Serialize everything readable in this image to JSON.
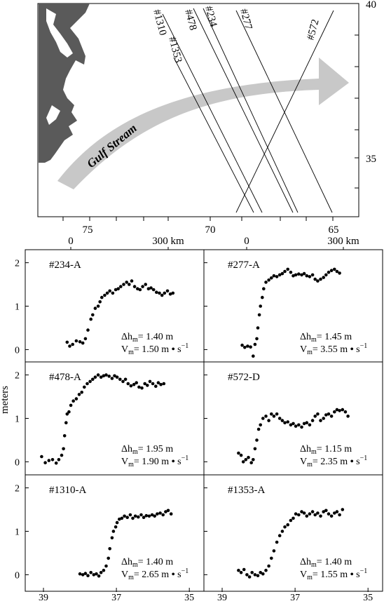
{
  "map": {
    "lat_ticks": [
      "40",
      "35"
    ],
    "lon_ticks": [
      "75",
      "70",
      "65"
    ],
    "scale_bars": [
      {
        "start": "0",
        "end": "300 km"
      },
      {
        "start": "0",
        "end": "300 km"
      }
    ],
    "current_label": "Gulf Stream",
    "tracks": [
      {
        "label": "#1310",
        "label2": "#1353"
      },
      {
        "label": "#478"
      },
      {
        "label": "#234"
      },
      {
        "label": "#277"
      },
      {
        "label": "#572"
      }
    ],
    "colors": {
      "land": "#5a5a5a",
      "arrow": "#c8c8c8"
    }
  },
  "panels_ylabel": "meters",
  "chart_data": [
    {
      "type": "scatter",
      "title": "#234-A",
      "ylim": [
        -0.3,
        2.3
      ],
      "xlim": [
        39.5,
        34.6
      ],
      "yticks": [
        "0",
        "1",
        "2"
      ],
      "xticks": [],
      "annotation": {
        "dh": "Δh",
        "dh_sub": "m",
        "dh_val": "= 1.40 m",
        "v": "V",
        "v_sub": "m",
        "v_val": "= 1.50 m",
        "v_unit": "s",
        "v_exp": "−1"
      },
      "points": [
        [
          38.35,
          0.17
        ],
        [
          38.28,
          0.08
        ],
        [
          38.2,
          0.12
        ],
        [
          38.1,
          0.2
        ],
        [
          38.0,
          0.18
        ],
        [
          37.92,
          0.15
        ],
        [
          37.85,
          0.25
        ],
        [
          37.78,
          0.45
        ],
        [
          37.7,
          0.7
        ],
        [
          37.65,
          0.8
        ],
        [
          37.58,
          0.95
        ],
        [
          37.5,
          1.0
        ],
        [
          37.45,
          1.1
        ],
        [
          37.4,
          1.2
        ],
        [
          37.32,
          1.25
        ],
        [
          37.25,
          1.3
        ],
        [
          37.18,
          1.35
        ],
        [
          37.1,
          1.3
        ],
        [
          37.02,
          1.38
        ],
        [
          36.95,
          1.4
        ],
        [
          36.88,
          1.45
        ],
        [
          36.8,
          1.5
        ],
        [
          36.72,
          1.55
        ],
        [
          36.65,
          1.5
        ],
        [
          36.58,
          1.58
        ],
        [
          36.5,
          1.45
        ],
        [
          36.42,
          1.4
        ],
        [
          36.35,
          1.38
        ],
        [
          36.28,
          1.45
        ],
        [
          36.2,
          1.5
        ],
        [
          36.12,
          1.4
        ],
        [
          36.05,
          1.42
        ],
        [
          35.98,
          1.38
        ],
        [
          35.9,
          1.32
        ],
        [
          35.82,
          1.3
        ],
        [
          35.75,
          1.25
        ],
        [
          35.68,
          1.3
        ],
        [
          35.6,
          1.35
        ],
        [
          35.52,
          1.28
        ],
        [
          35.45,
          1.3
        ]
      ]
    },
    {
      "type": "scatter",
      "title": "#277-A",
      "ylim": [
        -0.3,
        2.3
      ],
      "xlim": [
        39.5,
        34.6
      ],
      "yticks": [],
      "xticks": [],
      "annotation": {
        "dh": "Δh",
        "dh_sub": "m",
        "dh_val": "= 1.45 m",
        "v": "V",
        "v_sub": "m",
        "v_val": "= 3.55 m",
        "v_unit": "s",
        "v_exp": "−1"
      },
      "points": [
        [
          38.45,
          0.1
        ],
        [
          38.38,
          0.05
        ],
        [
          38.3,
          0.08
        ],
        [
          38.22,
          0.06
        ],
        [
          38.15,
          -0.15
        ],
        [
          38.1,
          0.12
        ],
        [
          38.05,
          0.25
        ],
        [
          38.02,
          0.5
        ],
        [
          37.98,
          0.8
        ],
        [
          37.95,
          1.0
        ],
        [
          37.9,
          1.2
        ],
        [
          37.86,
          1.4
        ],
        [
          37.8,
          1.55
        ],
        [
          37.72,
          1.6
        ],
        [
          37.65,
          1.65
        ],
        [
          37.58,
          1.7
        ],
        [
          37.5,
          1.68
        ],
        [
          37.42,
          1.72
        ],
        [
          37.35,
          1.75
        ],
        [
          37.28,
          1.8
        ],
        [
          37.2,
          1.85
        ],
        [
          37.12,
          1.78
        ],
        [
          37.05,
          1.7
        ],
        [
          36.98,
          1.72
        ],
        [
          36.9,
          1.74
        ],
        [
          36.82,
          1.72
        ],
        [
          36.75,
          1.75
        ],
        [
          36.68,
          1.7
        ],
        [
          36.6,
          1.68
        ],
        [
          36.52,
          1.72
        ],
        [
          36.45,
          1.62
        ],
        [
          36.38,
          1.58
        ],
        [
          36.3,
          1.62
        ],
        [
          36.22,
          1.66
        ],
        [
          36.15,
          1.72
        ],
        [
          36.08,
          1.78
        ],
        [
          36.0,
          1.82
        ],
        [
          35.92,
          1.85
        ],
        [
          35.85,
          1.8
        ],
        [
          35.78,
          1.76
        ]
      ]
    },
    {
      "type": "scatter",
      "title": "#478-A",
      "ylim": [
        -0.3,
        2.3
      ],
      "xlim": [
        39.5,
        34.6
      ],
      "yticks": [
        "0",
        "1",
        "2"
      ],
      "xticks": [],
      "annotation": {
        "dh": "Δh",
        "dh_sub": "m",
        "dh_val": "= 1.95 m",
        "v": "V",
        "v_sub": "m",
        "v_val": "= 1.90 m",
        "v_unit": "s",
        "v_exp": "−1"
      },
      "points": [
        [
          39.05,
          0.12
        ],
        [
          38.95,
          -0.02
        ],
        [
          38.85,
          0.03
        ],
        [
          38.75,
          0.05
        ],
        [
          38.65,
          -0.03
        ],
        [
          38.58,
          0.05
        ],
        [
          38.5,
          0.15
        ],
        [
          38.45,
          0.3
        ],
        [
          38.42,
          0.6
        ],
        [
          38.38,
          0.9
        ],
        [
          38.35,
          1.1
        ],
        [
          38.3,
          1.15
        ],
        [
          38.25,
          1.3
        ],
        [
          38.18,
          1.4
        ],
        [
          38.1,
          1.45
        ],
        [
          38.02,
          1.55
        ],
        [
          37.95,
          1.6
        ],
        [
          37.88,
          1.72
        ],
        [
          37.8,
          1.8
        ],
        [
          37.72,
          1.85
        ],
        [
          37.65,
          1.9
        ],
        [
          37.58,
          1.95
        ],
        [
          37.5,
          2.0
        ],
        [
          37.42,
          1.95
        ],
        [
          37.35,
          1.98
        ],
        [
          37.28,
          2.0
        ],
        [
          37.2,
          1.97
        ],
        [
          37.12,
          1.92
        ],
        [
          37.05,
          1.98
        ],
        [
          36.98,
          1.95
        ],
        [
          36.9,
          1.9
        ],
        [
          36.82,
          1.85
        ],
        [
          36.75,
          1.9
        ],
        [
          36.68,
          1.8
        ],
        [
          36.6,
          1.75
        ],
        [
          36.52,
          1.78
        ],
        [
          36.45,
          1.82
        ],
        [
          36.38,
          1.72
        ],
        [
          36.3,
          1.7
        ],
        [
          36.22,
          1.8
        ],
        [
          36.15,
          1.76
        ],
        [
          36.08,
          1.85
        ],
        [
          36.0,
          1.8
        ],
        [
          35.92,
          1.74
        ],
        [
          35.85,
          1.82
        ],
        [
          35.78,
          1.78
        ],
        [
          35.7,
          1.8
        ]
      ]
    },
    {
      "type": "scatter",
      "title": "#572-D",
      "ylim": [
        -0.3,
        2.3
      ],
      "xlim": [
        39.5,
        34.6
      ],
      "yticks": [],
      "xticks": [],
      "annotation": {
        "dh": "Δh",
        "dh_sub": "m",
        "dh_val": "= 1.15 m",
        "v": "V",
        "v_sub": "m",
        "v_val": "= 2.35 m",
        "v_unit": "s",
        "v_exp": "−1"
      },
      "points": [
        [
          38.55,
          0.2
        ],
        [
          38.48,
          0.15
        ],
        [
          38.42,
          0.0
        ],
        [
          38.35,
          0.05
        ],
        [
          38.28,
          0.1
        ],
        [
          38.2,
          -0.02
        ],
        [
          38.15,
          0.05
        ],
        [
          38.1,
          0.3
        ],
        [
          38.05,
          0.5
        ],
        [
          38.0,
          0.75
        ],
        [
          37.95,
          0.85
        ],
        [
          37.88,
          1.0
        ],
        [
          37.8,
          1.05
        ],
        [
          37.72,
          0.95
        ],
        [
          37.65,
          1.1
        ],
        [
          37.58,
          1.05
        ],
        [
          37.5,
          1.1
        ],
        [
          37.42,
          1.0
        ],
        [
          37.35,
          0.95
        ],
        [
          37.28,
          0.9
        ],
        [
          37.2,
          0.92
        ],
        [
          37.12,
          0.85
        ],
        [
          37.05,
          0.88
        ],
        [
          36.98,
          0.82
        ],
        [
          36.9,
          0.85
        ],
        [
          36.82,
          0.8
        ],
        [
          36.75,
          0.88
        ],
        [
          36.68,
          0.9
        ],
        [
          36.6,
          0.85
        ],
        [
          36.52,
          0.95
        ],
        [
          36.45,
          1.05
        ],
        [
          36.38,
          1.1
        ],
        [
          36.3,
          0.95
        ],
        [
          36.22,
          1.0
        ],
        [
          36.15,
          1.08
        ],
        [
          36.08,
          1.1
        ],
        [
          36.0,
          1.05
        ],
        [
          35.92,
          1.15
        ],
        [
          35.85,
          1.2
        ],
        [
          35.78,
          1.18
        ],
        [
          35.7,
          1.2
        ],
        [
          35.62,
          1.15
        ],
        [
          35.55,
          1.05
        ]
      ]
    },
    {
      "type": "scatter",
      "title": "#1310-A",
      "ylim": [
        -0.3,
        2.3
      ],
      "xlim": [
        39.5,
        34.6
      ],
      "yticks": [
        "0",
        "1",
        "2"
      ],
      "xticks": [
        "39",
        "37",
        "35"
      ],
      "xtick_values": [
        39,
        37,
        35
      ],
      "annotation": {
        "dh": "Δh",
        "dh_sub": "m",
        "dh_val": "= 1.40 m",
        "v": "V",
        "v_sub": "m",
        "v_val": "= 2.65 m",
        "v_unit": "s",
        "v_exp": "−1"
      },
      "points": [
        [
          38.0,
          0.02
        ],
        [
          37.92,
          0.0
        ],
        [
          37.85,
          0.03
        ],
        [
          37.78,
          -0.02
        ],
        [
          37.7,
          0.05
        ],
        [
          37.62,
          0.0
        ],
        [
          37.55,
          0.02
        ],
        [
          37.48,
          -0.03
        ],
        [
          37.42,
          0.05
        ],
        [
          37.35,
          0.1
        ],
        [
          37.28,
          0.2
        ],
        [
          37.22,
          0.38
        ],
        [
          37.18,
          0.6
        ],
        [
          37.12,
          0.85
        ],
        [
          37.08,
          1.0
        ],
        [
          37.02,
          1.1
        ],
        [
          36.98,
          1.2
        ],
        [
          36.92,
          1.28
        ],
        [
          36.85,
          1.3
        ],
        [
          36.78,
          1.35
        ],
        [
          36.7,
          1.32
        ],
        [
          36.62,
          1.38
        ],
        [
          36.55,
          1.3
        ],
        [
          36.48,
          1.35
        ],
        [
          36.4,
          1.33
        ],
        [
          36.32,
          1.38
        ],
        [
          36.25,
          1.32
        ],
        [
          36.18,
          1.36
        ],
        [
          36.1,
          1.35
        ],
        [
          36.02,
          1.38
        ],
        [
          35.95,
          1.35
        ],
        [
          35.88,
          1.4
        ],
        [
          35.8,
          1.42
        ],
        [
          35.72,
          1.38
        ],
        [
          35.65,
          1.45
        ],
        [
          35.58,
          1.48
        ],
        [
          35.5,
          1.4
        ]
      ]
    },
    {
      "type": "scatter",
      "title": "#1353-A",
      "ylim": [
        -0.3,
        2.3
      ],
      "xlim": [
        39.5,
        34.6
      ],
      "yticks": [],
      "xticks": [
        "39",
        "37",
        "35"
      ],
      "xtick_values": [
        39,
        37,
        35
      ],
      "annotation": {
        "dh": "Δh",
        "dh_sub": "m",
        "dh_val": "= 1.40 m",
        "v": "V",
        "v_sub": "m",
        "v_val": "= 1.55 m",
        "v_unit": "s",
        "v_exp": "−1"
      },
      "points": [
        [
          38.55,
          0.1
        ],
        [
          38.48,
          0.05
        ],
        [
          38.4,
          0.12
        ],
        [
          38.32,
          0.0
        ],
        [
          38.25,
          -0.05
        ],
        [
          38.18,
          0.05
        ],
        [
          38.1,
          0.0
        ],
        [
          38.02,
          -0.02
        ],
        [
          37.95,
          0.05
        ],
        [
          37.88,
          0.02
        ],
        [
          37.8,
          0.1
        ],
        [
          37.72,
          0.2
        ],
        [
          37.65,
          0.38
        ],
        [
          37.58,
          0.55
        ],
        [
          37.5,
          0.75
        ],
        [
          37.42,
          0.9
        ],
        [
          37.35,
          1.0
        ],
        [
          37.28,
          1.1
        ],
        [
          37.2,
          1.15
        ],
        [
          37.12,
          1.25
        ],
        [
          37.05,
          1.3
        ],
        [
          36.98,
          1.4
        ],
        [
          36.9,
          1.38
        ],
        [
          36.82,
          1.45
        ],
        [
          36.75,
          1.42
        ],
        [
          36.68,
          1.35
        ],
        [
          36.6,
          1.4
        ],
        [
          36.52,
          1.45
        ],
        [
          36.45,
          1.38
        ],
        [
          36.38,
          1.42
        ],
        [
          36.3,
          1.35
        ],
        [
          36.22,
          1.45
        ],
        [
          36.15,
          1.48
        ],
        [
          36.08,
          1.4
        ],
        [
          36.0,
          1.35
        ],
        [
          35.92,
          1.42
        ],
        [
          35.85,
          1.45
        ],
        [
          35.78,
          1.38
        ],
        [
          35.7,
          1.5
        ]
      ]
    }
  ]
}
